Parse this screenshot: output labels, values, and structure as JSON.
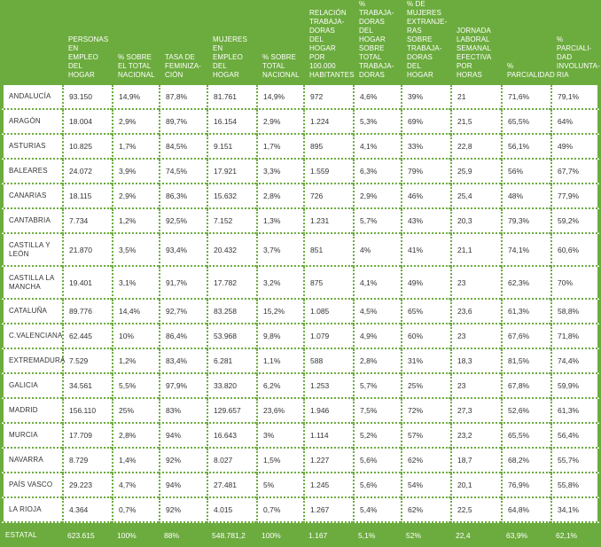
{
  "colors": {
    "accent": "#6cac3e",
    "text": "#333333",
    "header_text": "#ffffff"
  },
  "headers": [
    "",
    "Personas en empleo del hogar",
    "% sobre el total nacional",
    "Tasa de feminiza-ción",
    "Mujeres en empleo del hogar",
    "% sobre total nacional",
    "Relación trabaja-doras del hogar por 100.000 habitantes",
    "% trabaja-doras del hogar sobre total trabaja-doras",
    "% de mujeres extranje-ras sobre trabaja-doras del hogar",
    "Jornada laboral semanal efectiva por horas",
    "% parcialidad",
    "% parciali-dad involunta-ria"
  ],
  "rows": [
    {
      "region": "Andalucía",
      "h": 1,
      "cells": [
        "93.150",
        "14,9%",
        "87,8%",
        "81.761",
        "14,9%",
        "972",
        "4,6%",
        "39%",
        "21",
        "71,6%",
        "79,1%"
      ]
    },
    {
      "region": "Aragón",
      "h": 1,
      "cells": [
        "18.004",
        "2,9%",
        "89,7%",
        "16.154",
        "2,9%",
        "1.224",
        "5,3%",
        "69%",
        "21,5",
        "65,5%",
        "64%"
      ]
    },
    {
      "region": "Asturias",
      "h": 1,
      "cells": [
        "10.825",
        "1,7%",
        "84,5%",
        "9.151",
        "1,7%",
        "895",
        "4,1%",
        "33%",
        "22,8",
        "56,1%",
        "49%"
      ]
    },
    {
      "region": "Baleares",
      "h": 1,
      "cells": [
        "24.072",
        "3,9%",
        "74,5%",
        "17.921",
        "3,3%",
        "1.559",
        "6,3%",
        "79%",
        "25,9",
        "56%",
        "67,7%"
      ]
    },
    {
      "region": "Canarias",
      "h": 1,
      "cells": [
        "18.115",
        "2,9%",
        "86,3%",
        "15.632",
        "2,8%",
        "726",
        "2,9%",
        "46%",
        "25,4",
        "48%",
        "77,9%"
      ]
    },
    {
      "region": "Cantabria",
      "h": 1,
      "cells": [
        "7.734",
        "1,2%",
        "92,5%",
        "7.152",
        "1,3%",
        "1.231",
        "5,7%",
        "43%",
        "20,3",
        "79,3%",
        "59,2%"
      ]
    },
    {
      "region": "Castilla y León",
      "h": 2,
      "cells": [
        "21.870",
        "3,5%",
        "93,4%",
        "20.432",
        "3,7%",
        "851",
        "4%",
        "41%",
        "21,1",
        "74,1%",
        "60,6%"
      ]
    },
    {
      "region": "Castilla La Mancha",
      "h": 2,
      "cells": [
        "19.401",
        "3,1%",
        "91,7%",
        "17.782",
        "3,2%",
        "875",
        "4,1%",
        "49%",
        "23",
        "62,3%",
        "70%"
      ]
    },
    {
      "region": "Cataluña",
      "h": 1,
      "cells": [
        "89.776",
        "14,4%",
        "92,7%",
        "83.258",
        "15,2%",
        "1.085",
        "4,5%",
        "65%",
        "23,6",
        "61,3%",
        "58,8%"
      ]
    },
    {
      "region": "C.Valenciana",
      "h": 1,
      "cells": [
        "62.445",
        "10%",
        "86,4%",
        "53.968",
        "9,8%",
        "1.079",
        "4,9%",
        "60%",
        "23",
        "67,6%",
        "71,8%"
      ]
    },
    {
      "region": "Extremadura",
      "h": 1,
      "cells": [
        "7.529",
        "1,2%",
        "83,4%",
        "6.281",
        "1,1%",
        "588",
        "2,8%",
        "31%",
        "18,3",
        "81,5%",
        "74,4%"
      ]
    },
    {
      "region": "Galicia",
      "h": 1,
      "cells": [
        "34.561",
        "5,5%",
        "97,9%",
        "33.820",
        "6,2%",
        "1.253",
        "5,7%",
        "25%",
        "23",
        "67,8%",
        "59,9%"
      ]
    },
    {
      "region": "Madrid",
      "h": 1,
      "cells": [
        "156.110",
        "25%",
        "83%",
        "129.657",
        "23,6%",
        "1.946",
        "7,5%",
        "72%",
        "27,3",
        "52,6%",
        "61,3%"
      ]
    },
    {
      "region": "Murcia",
      "h": 1,
      "cells": [
        "17.709",
        "2,8%",
        "94%",
        "16.643",
        "3%",
        "1.114",
        "5,2%",
        "57%",
        "23,2",
        "65,5%",
        "56,4%"
      ]
    },
    {
      "region": "Navarra",
      "h": 1,
      "cells": [
        "8.729",
        "1,4%",
        "92%",
        "8.027",
        "1,5%",
        "1.227",
        "5,6%",
        "62%",
        "18,7",
        "68,2%",
        "55,7%"
      ]
    },
    {
      "region": "País Vasco",
      "h": 1,
      "cells": [
        "29.223",
        "4,7%",
        "94%",
        "27.481",
        "5%",
        "1.245",
        "5,6%",
        "54%",
        "20,1",
        "76,9%",
        "55,8%"
      ]
    },
    {
      "region": "La Rioja",
      "h": 1,
      "cells": [
        "4.364",
        "0,7%",
        "92%",
        "4.015",
        "0,7%",
        "1.267",
        "5,4%",
        "62%",
        "22,5",
        "64,8%",
        "34,1%"
      ]
    }
  ],
  "total": {
    "region": "Estatal",
    "cells": [
      "623.615",
      "100%",
      "88%",
      "548.781,2",
      "100%",
      "1.167",
      "5,1%",
      "52%",
      "22,4",
      "63,9%",
      "62,1%"
    ]
  }
}
